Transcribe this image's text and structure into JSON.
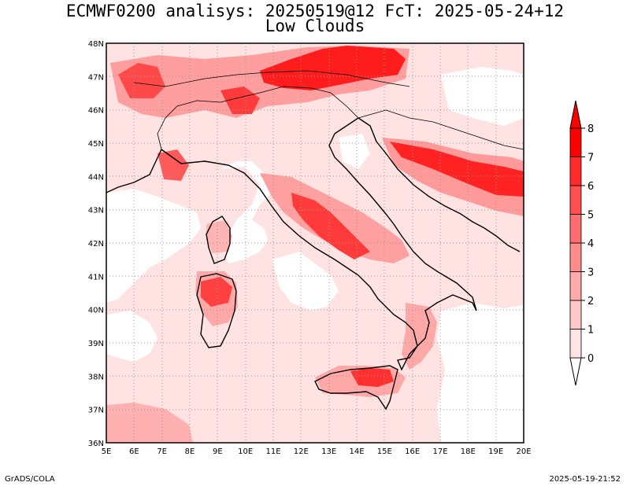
{
  "title": {
    "line1": "ECMWF0200 analisys: 20250519@12 FcT: 2025-05-24+12",
    "line2": "Low Clouds"
  },
  "map": {
    "lon_labels": [
      "5E",
      "6E",
      "7E",
      "8E",
      "9E",
      "10E",
      "11E",
      "12E",
      "13E",
      "14E",
      "15E",
      "16E",
      "17E",
      "18E",
      "19E",
      "20E"
    ],
    "lat_labels": [
      "48N",
      "47N",
      "46N",
      "45N",
      "44N",
      "43N",
      "42N",
      "41N",
      "40N",
      "39N",
      "38N",
      "37N",
      "36N"
    ],
    "lon_range": [
      5,
      20
    ],
    "lat_range": [
      36,
      48
    ],
    "grid": "dotted"
  },
  "colorbar": {
    "levels": [
      "0",
      "1",
      "2",
      "3",
      "4",
      "5",
      "6",
      "7",
      "8"
    ],
    "colors": [
      "#ffffff",
      "#ffe4e4",
      "#ffc8c8",
      "#ffaaaa",
      "#ff8c8c",
      "#ff6e6e",
      "#ff5050",
      "#ff2a2a",
      "#ff0000"
    ]
  },
  "footer": {
    "left": "GrADS/COLA",
    "right": "2025-05-19-21:52"
  }
}
